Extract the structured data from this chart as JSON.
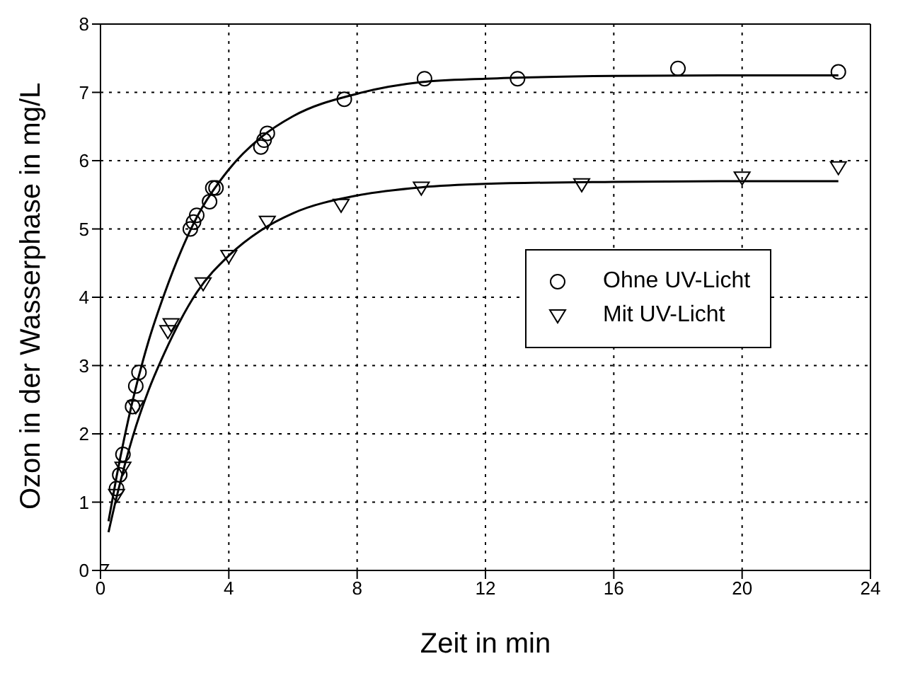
{
  "chart_data": {
    "type": "scatter",
    "xlabel": "Zeit in min",
    "ylabel": "Ozon in der Wasserphase in mg/L",
    "xlim": [
      0,
      24
    ],
    "xticks": [
      0,
      4,
      8,
      12,
      16,
      20,
      24
    ],
    "ylim": [
      0,
      8
    ],
    "yticks": [
      0,
      1,
      2,
      3,
      4,
      5,
      6,
      7,
      8
    ],
    "grid": true,
    "legend": "right",
    "series": [
      {
        "name": "Ohne UV-Licht",
        "color": "#000000",
        "marker": "circle",
        "x": [
          0.5,
          0.6,
          0.7,
          1.0,
          1.1,
          1.2,
          2.8,
          2.9,
          3.0,
          3.4,
          3.5,
          3.6,
          5.0,
          5.1,
          5.2,
          7.6,
          10.1,
          13,
          18,
          23
        ],
        "values": [
          1.2,
          1.4,
          1.7,
          2.4,
          2.7,
          2.9,
          5.0,
          5.1,
          5.2,
          5.4,
          5.6,
          5.6,
          6.2,
          6.3,
          6.4,
          6.9,
          7.2,
          7.2,
          7.35,
          7.3
        ]
      },
      {
        "name": "Mit UV-Licht",
        "color": "#000000",
        "marker": "triangle",
        "x": [
          0,
          0.5,
          0.7,
          1.1,
          2.1,
          2.2,
          3.2,
          4.0,
          5.2,
          7.5,
          10,
          15,
          20,
          23
        ],
        "values": [
          0,
          1.1,
          1.5,
          2.4,
          3.5,
          3.6,
          4.2,
          4.6,
          5.1,
          5.35,
          5.6,
          5.65,
          5.75,
          5.9
        ]
      },
      {
        "type": "line",
        "color": "#000000",
        "marker": "none",
        "line_style": "solid",
        "x": [
          0.25,
          0.5,
          1,
          1.5,
          2,
          3,
          4,
          5,
          6,
          8,
          10,
          12,
          16,
          20,
          23
        ],
        "values": [
          0.72,
          1.37,
          2.48,
          3.36,
          4.06,
          5.17,
          5.87,
          6.34,
          6.65,
          6.98,
          7.15,
          7.2,
          7.24,
          7.25,
          7.25
        ]
      },
      {
        "type": "line",
        "color": "#000000",
        "marker": "none",
        "line_style": "solid",
        "x": [
          0.25,
          0.5,
          1,
          1.5,
          2,
          3,
          4,
          5,
          6,
          8,
          10,
          12,
          16,
          20,
          23
        ],
        "values": [
          0.56,
          1.07,
          1.95,
          2.64,
          3.19,
          4.07,
          4.61,
          4.98,
          5.23,
          5.49,
          5.61,
          5.66,
          5.69,
          5.7,
          5.7
        ]
      }
    ]
  }
}
